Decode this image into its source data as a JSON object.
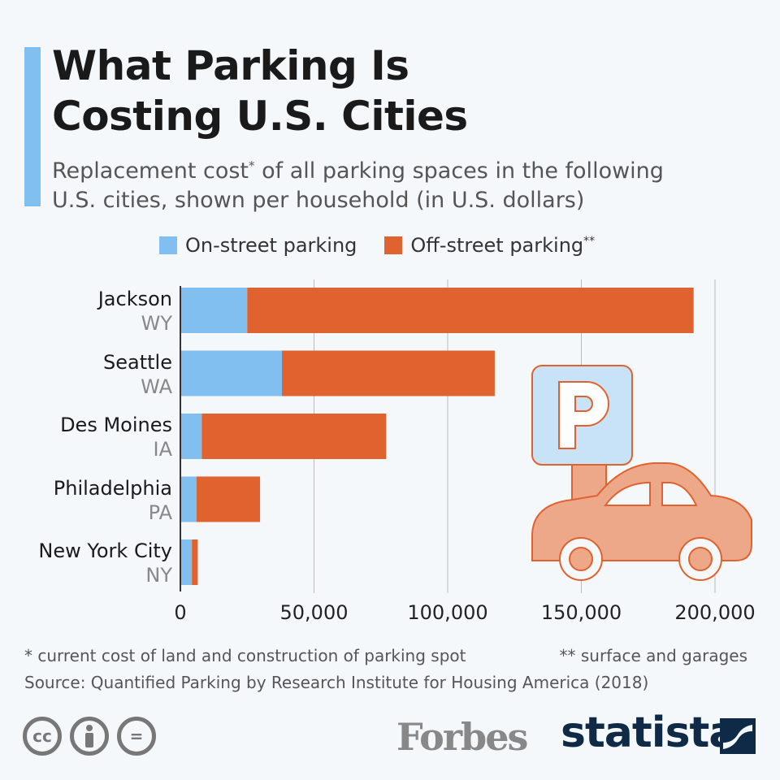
{
  "title_line1": "What Parking Is",
  "title_line2": "Costing U.S. Cities",
  "subtitle_a": "Replacement cost",
  "subtitle_star": "*",
  "subtitle_b": " of all parking spaces in the following",
  "subtitle_line2": "U.S. cities, shown per household (in U.S. dollars)",
  "colors": {
    "on_street": "#80bff0",
    "off_street": "#e0632f",
    "accent": "#80bff0",
    "illustration": "#eda88a"
  },
  "chart_data": {
    "type": "bar",
    "orientation": "horizontal",
    "stacked": true,
    "categories": [
      {
        "city": "Jackson",
        "state": "WY"
      },
      {
        "city": "Seattle",
        "state": "WA"
      },
      {
        "city": "Des Moines",
        "state": "IA"
      },
      {
        "city": "Philadelphia",
        "state": "PA"
      },
      {
        "city": "New York City",
        "state": "NY"
      }
    ],
    "series": [
      {
        "name": "On-street parking",
        "name_suffix": "",
        "values": [
          25000,
          38000,
          8000,
          6000,
          4300
        ]
      },
      {
        "name": "Off-street parking",
        "name_suffix": "**",
        "values": [
          167000,
          79600,
          69000,
          23800,
          2200
        ]
      }
    ],
    "xlim": [
      0,
      200000
    ],
    "xticks": [
      "0",
      "50,000",
      "100,000",
      "150,000",
      "200,000"
    ],
    "grid": true,
    "legend": "top"
  },
  "footnote_1": "* current cost of land and construction of parking spot",
  "footnote_2": "** surface and garages",
  "source": "Source: Quantified Parking by Research Institute for Housing America (2018)",
  "license_icons": [
    "cc",
    "by",
    "nd"
  ],
  "license_labels": {
    "cc": "cc",
    "nd": "="
  },
  "logo_forbes": "Forbes",
  "logo_statista": "statista"
}
